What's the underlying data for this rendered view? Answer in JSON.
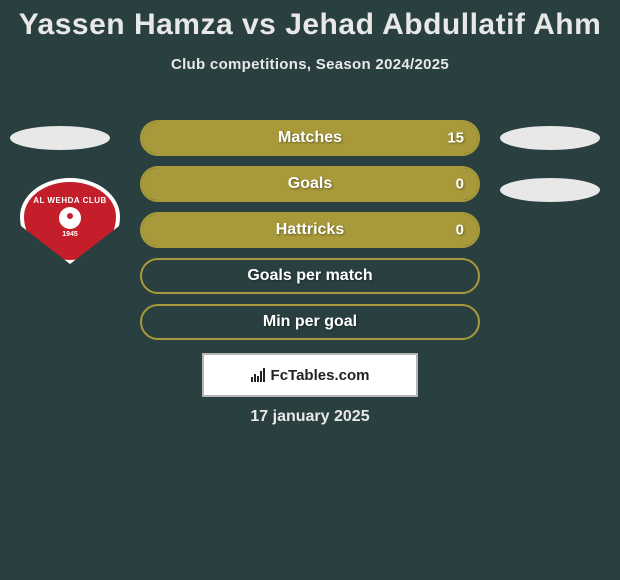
{
  "colors": {
    "background": "#2a4040",
    "text_light": "#e8e8e8",
    "bar_fill": "#a89a3a",
    "bar_border": "#a89a3a",
    "badge_bg": "#c41e2a",
    "badge_border": "#ffffff",
    "footer_bg": "#ffffff",
    "footer_border": "#b5b5b5",
    "footer_text": "#222222"
  },
  "header": {
    "title": "Yassen Hamza vs Jehad Abdullatif Ahm",
    "subtitle": "Club competitions, Season 2024/2025"
  },
  "left_team": {
    "badge_top_text": "AL WEHDA CLUB",
    "badge_year": "1945"
  },
  "stats": [
    {
      "label": "Matches",
      "value": "15",
      "fill_pct": 100
    },
    {
      "label": "Goals",
      "value": "0",
      "fill_pct": 100
    },
    {
      "label": "Hattricks",
      "value": "0",
      "fill_pct": 100
    },
    {
      "label": "Goals per match",
      "value": "",
      "fill_pct": 0
    },
    {
      "label": "Min per goal",
      "value": "",
      "fill_pct": 0
    }
  ],
  "footer": {
    "brand": "FcTables.com",
    "date": "17 january 2025"
  },
  "typography": {
    "title_fontsize": 30,
    "subtitle_fontsize": 15,
    "stat_label_fontsize": 16,
    "stat_value_fontsize": 15,
    "footer_fontsize": 15,
    "date_fontsize": 16
  }
}
